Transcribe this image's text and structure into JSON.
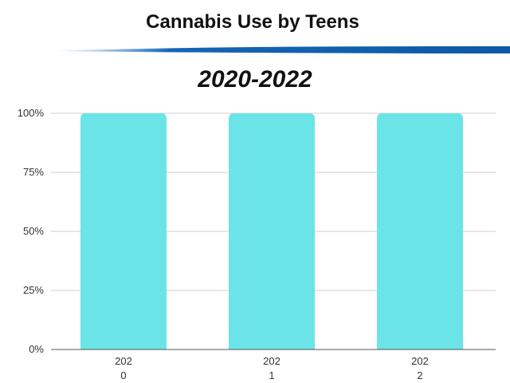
{
  "header": {
    "title": "Cannabis Use by Teens",
    "subtitle": "2020-2022"
  },
  "colors": {
    "bar": "#6ae4e6",
    "swoosh": "#1565b4",
    "grid": "#cccccc",
    "axis": "#555555"
  },
  "chart_data": {
    "type": "bar",
    "title": "Cannabis Use by Teens",
    "subtitle": "2020-2022",
    "categories": [
      "2020",
      "2021",
      "2022"
    ],
    "category_label_lines": [
      [
        "202",
        "0"
      ],
      [
        "202",
        "1"
      ],
      [
        "202",
        "2"
      ]
    ],
    "series": [
      {
        "values": [
          100,
          100,
          100
        ]
      }
    ],
    "ylim": [
      0,
      100
    ],
    "yticks": [
      0,
      25,
      50,
      75,
      100
    ],
    "ytick_labels": [
      "0%",
      "25%",
      "50%",
      "75%",
      "100%"
    ],
    "grid": true,
    "legend": "none"
  }
}
